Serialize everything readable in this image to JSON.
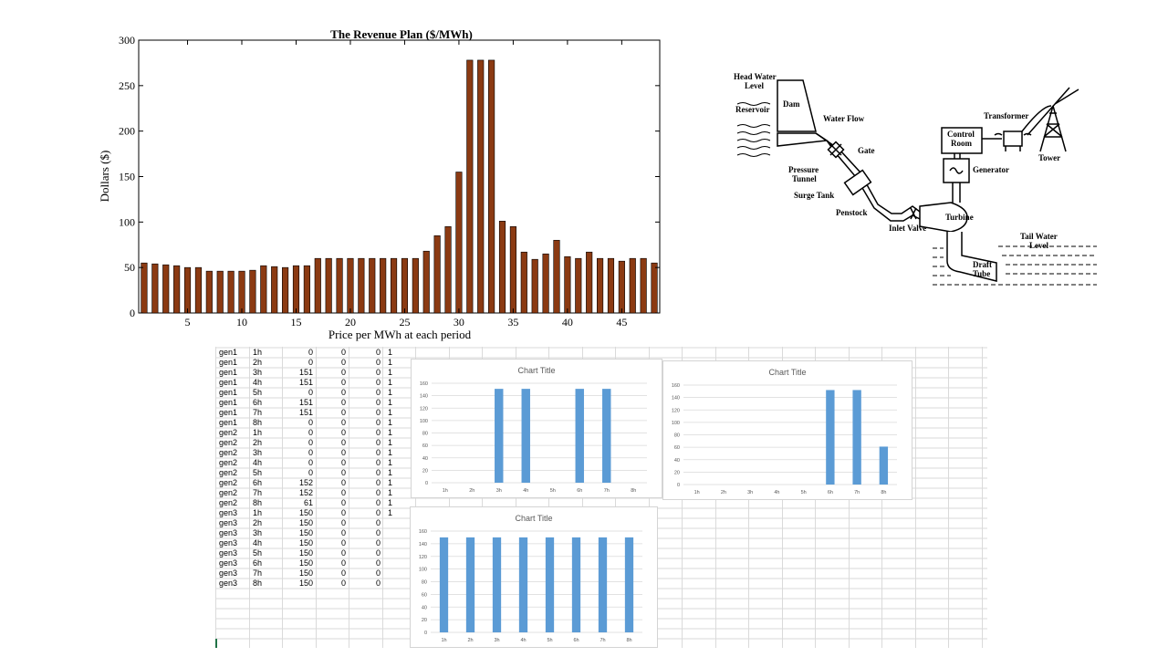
{
  "colors": {
    "revenue_bar": "#8B3A12",
    "excel_bar": "#5B9BD5",
    "gridline": "#d9d9d9",
    "axis_text": "#595959"
  },
  "diagram": {
    "labels": {
      "head_water_level": "Head Water\nLevel",
      "reservoir": "Reservoir",
      "dam": "Dam",
      "water_flow": "Water Flow",
      "gate": "Gate",
      "pressure_tunnel": "Pressure\nTunnel",
      "surge_tank": "Surge Tank",
      "penstock": "Penstock",
      "inlet_valve": "Inlet Valve",
      "turbine": "Turbine",
      "control_room": "Control\nRoom",
      "generator": "Generator",
      "transformer": "Transformer",
      "tower": "Tower",
      "tail_water_level": "Tail Water\nLevel",
      "draft_tube": "Draft\nTube"
    }
  },
  "spreadsheet": {
    "rows": [
      [
        "gen1",
        "1h",
        "0",
        "0",
        "0",
        "1"
      ],
      [
        "gen1",
        "2h",
        "0",
        "0",
        "0",
        "1"
      ],
      [
        "gen1",
        "3h",
        "151",
        "0",
        "0",
        "1"
      ],
      [
        "gen1",
        "4h",
        "151",
        "0",
        "0",
        "1"
      ],
      [
        "gen1",
        "5h",
        "0",
        "0",
        "0",
        "1"
      ],
      [
        "gen1",
        "6h",
        "151",
        "0",
        "0",
        "1"
      ],
      [
        "gen1",
        "7h",
        "151",
        "0",
        "0",
        "1"
      ],
      [
        "gen1",
        "8h",
        "0",
        "0",
        "0",
        "1"
      ],
      [
        "gen2",
        "1h",
        "0",
        "0",
        "0",
        "1"
      ],
      [
        "gen2",
        "2h",
        "0",
        "0",
        "0",
        "1"
      ],
      [
        "gen2",
        "3h",
        "0",
        "0",
        "0",
        "1"
      ],
      [
        "gen2",
        "4h",
        "0",
        "0",
        "0",
        "1"
      ],
      [
        "gen2",
        "5h",
        "0",
        "0",
        "0",
        "1"
      ],
      [
        "gen2",
        "6h",
        "152",
        "0",
        "0",
        "1"
      ],
      [
        "gen2",
        "7h",
        "152",
        "0",
        "0",
        "1"
      ],
      [
        "gen2",
        "8h",
        "61",
        "0",
        "0",
        "1"
      ],
      [
        "gen3",
        "1h",
        "150",
        "0",
        "0",
        "1"
      ],
      [
        "gen3",
        "2h",
        "150",
        "0",
        "0",
        ""
      ],
      [
        "gen3",
        "3h",
        "150",
        "0",
        "0",
        ""
      ],
      [
        "gen3",
        "4h",
        "150",
        "0",
        "0",
        ""
      ],
      [
        "gen3",
        "5h",
        "150",
        "0",
        "0",
        ""
      ],
      [
        "gen3",
        "6h",
        "150",
        "0",
        "0",
        ""
      ],
      [
        "gen3",
        "7h",
        "150",
        "0",
        "0",
        ""
      ],
      [
        "gen3",
        "8h",
        "150",
        "0",
        "0",
        ""
      ]
    ]
  },
  "chart_data": [
    {
      "type": "bar",
      "title": "The Revenue Plan ($/MWh)",
      "xlabel": "Price per MWh at each period",
      "ylabel": "Dollars ($)",
      "xlim": [
        0.5,
        48.5
      ],
      "ylim": [
        0,
        300
      ],
      "xticks": [
        5,
        10,
        15,
        20,
        25,
        30,
        35,
        40,
        45
      ],
      "yticks": [
        0,
        50,
        100,
        150,
        200,
        250,
        300
      ],
      "x": [
        1,
        2,
        3,
        4,
        5,
        6,
        7,
        8,
        9,
        10,
        11,
        12,
        13,
        14,
        15,
        16,
        17,
        18,
        19,
        20,
        21,
        22,
        23,
        24,
        25,
        26,
        27,
        28,
        29,
        30,
        31,
        32,
        33,
        34,
        35,
        36,
        37,
        38,
        39,
        40,
        41,
        42,
        43,
        44,
        45,
        46,
        47,
        48
      ],
      "values": [
        55,
        54,
        53,
        52,
        50,
        50,
        46,
        46,
        46,
        46,
        47,
        52,
        51,
        50,
        52,
        52,
        60,
        60,
        60,
        60,
        60,
        60,
        60,
        60,
        60,
        60,
        68,
        85,
        95,
        155,
        278,
        278,
        278,
        101,
        95,
        67,
        59,
        65,
        80,
        62,
        60,
        67,
        60,
        60,
        57,
        60,
        60,
        55
      ],
      "grid": false
    },
    {
      "type": "bar",
      "title": "Chart Title",
      "categories": [
        "1h",
        "2h",
        "3h",
        "4h",
        "5h",
        "6h",
        "7h",
        "8h"
      ],
      "values": [
        0,
        0,
        151,
        151,
        0,
        151,
        151,
        0
      ],
      "ylim": [
        0,
        160
      ],
      "yticks": [
        0,
        20,
        40,
        60,
        80,
        100,
        120,
        140,
        160
      ],
      "grid": true
    },
    {
      "type": "bar",
      "title": "Chart Title",
      "categories": [
        "1h",
        "2h",
        "3h",
        "4h",
        "5h",
        "6h",
        "7h",
        "8h"
      ],
      "values": [
        0,
        0,
        0,
        0,
        0,
        152,
        152,
        61
      ],
      "ylim": [
        0,
        160
      ],
      "yticks": [
        0,
        20,
        40,
        60,
        80,
        100,
        120,
        140,
        160
      ],
      "grid": true
    },
    {
      "type": "bar",
      "title": "Chart Title",
      "categories": [
        "1h",
        "2h",
        "3h",
        "4h",
        "5h",
        "6h",
        "7h",
        "8h"
      ],
      "values": [
        150,
        150,
        150,
        150,
        150,
        150,
        150,
        150
      ],
      "ylim": [
        0,
        160
      ],
      "yticks": [
        0,
        20,
        40,
        60,
        80,
        100,
        120,
        140,
        160
      ],
      "grid": true
    }
  ]
}
